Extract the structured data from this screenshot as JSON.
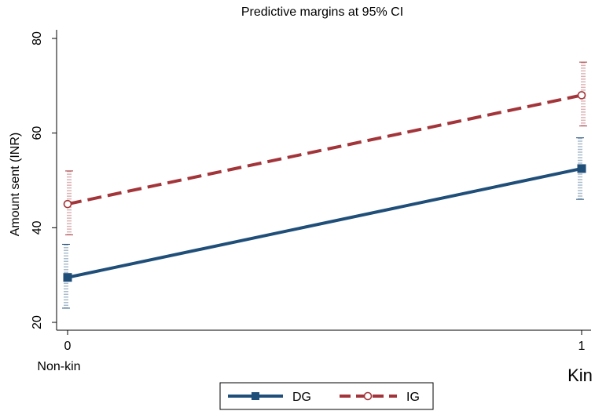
{
  "chart_data": {
    "type": "line",
    "title": "Predictive margins at 95% CI",
    "xlabel": "Kin",
    "ylabel": "Amount sent (INR)",
    "x": [
      0,
      1
    ],
    "x_tick_labels": [
      "0",
      "1"
    ],
    "x_annotation": "Non-kin",
    "xlim": [
      0,
      1
    ],
    "ylim": [
      20,
      80
    ],
    "y_ticks": [
      20,
      40,
      60,
      80
    ],
    "y_tick_labels": [
      "20",
      "40",
      "60",
      "80"
    ],
    "grid": false,
    "legend_position": "bottom",
    "series": [
      {
        "name": "DG",
        "values": [
          29.5,
          52.5
        ],
        "ci_low": [
          23,
          46
        ],
        "ci_high": [
          36.5,
          59
        ],
        "color": "#1f4e79",
        "line_style": "solid",
        "marker": "square"
      },
      {
        "name": "IG",
        "values": [
          45,
          68
        ],
        "ci_low": [
          38.5,
          61.5
        ],
        "ci_high": [
          52,
          75
        ],
        "color": "#a3353a",
        "line_style": "dashed",
        "marker": "hollow-circle"
      }
    ]
  }
}
